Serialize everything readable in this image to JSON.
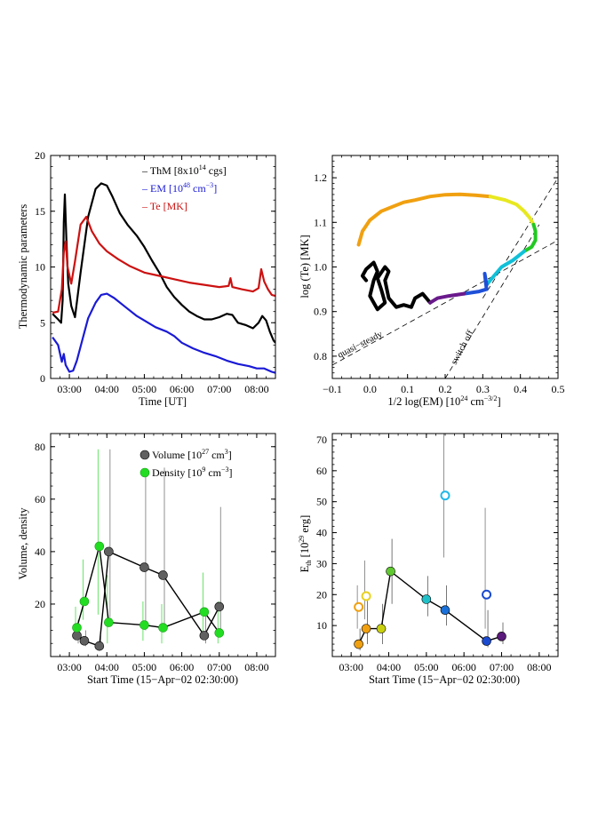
{
  "chart_data": [
    {
      "id": "thermo",
      "type": "line",
      "xlabel": "Time [UT]",
      "ylabel": "Thermodynamic parameters",
      "xlim": [
        2.5,
        8.5
      ],
      "ylim": [
        0,
        20
      ],
      "xticks": [
        3,
        4,
        5,
        6,
        7,
        8
      ],
      "xtick_labels": [
        "03:00",
        "04:00",
        "05:00",
        "06:00",
        "07:00",
        "08:00"
      ],
      "yticks": [
        0,
        5,
        10,
        15,
        20
      ],
      "legend": [
        "– ThM [8x10",
        "14",
        " cgs]",
        "– EM [10",
        "48",
        " cm",
        "−3",
        "]",
        "– Te [MK]"
      ],
      "legend_position": "top-right",
      "series": [
        {
          "name": "ThM",
          "color": "#000000",
          "x": [
            2.55,
            2.7,
            2.78,
            2.82,
            2.85,
            2.88,
            2.92,
            2.97,
            3.05,
            3.15,
            3.3,
            3.5,
            3.7,
            3.85,
            4.0,
            4.15,
            4.35,
            4.55,
            4.8,
            5.0,
            5.2,
            5.4,
            5.6,
            5.8,
            6.0,
            6.2,
            6.4,
            6.6,
            6.8,
            7.0,
            7.2,
            7.35,
            7.5,
            7.7,
            7.9,
            8.05,
            8.15,
            8.25,
            8.35,
            8.45,
            8.5
          ],
          "y": [
            5.8,
            5.3,
            5.0,
            7.0,
            14.0,
            16.5,
            12.5,
            8.5,
            6.5,
            5.5,
            9.5,
            14.5,
            17.0,
            17.5,
            17.3,
            16.3,
            14.8,
            13.8,
            12.8,
            11.8,
            10.6,
            9.5,
            8.2,
            7.3,
            6.6,
            6.0,
            5.6,
            5.3,
            5.3,
            5.5,
            5.8,
            5.7,
            5.0,
            4.8,
            4.5,
            5.0,
            5.6,
            5.2,
            4.2,
            3.4,
            3.2
          ]
        },
        {
          "name": "EM",
          "color": "#1a1ad6",
          "x": [
            2.55,
            2.7,
            2.8,
            2.85,
            2.9,
            3.0,
            3.1,
            3.2,
            3.35,
            3.5,
            3.7,
            3.85,
            4.0,
            4.2,
            4.5,
            4.8,
            5.0,
            5.3,
            5.6,
            5.8,
            6.0,
            6.3,
            6.6,
            6.9,
            7.2,
            7.5,
            7.8,
            8.0,
            8.2,
            8.4,
            8.5
          ],
          "y": [
            3.7,
            3.0,
            1.5,
            2.2,
            1.2,
            0.6,
            0.7,
            1.6,
            3.5,
            5.4,
            6.8,
            7.5,
            7.6,
            7.2,
            6.4,
            5.6,
            5.2,
            4.6,
            4.2,
            3.8,
            3.2,
            2.7,
            2.3,
            2.0,
            1.6,
            1.3,
            1.1,
            0.9,
            0.9,
            0.6,
            0.5
          ]
        },
        {
          "name": "Te",
          "color": "#cc1111",
          "x": [
            2.55,
            2.7,
            2.8,
            2.85,
            2.9,
            2.95,
            3.05,
            3.15,
            3.3,
            3.45,
            3.6,
            3.8,
            4.0,
            4.3,
            4.6,
            5.0,
            5.4,
            5.8,
            6.2,
            6.6,
            7.0,
            7.25,
            7.3,
            7.35,
            7.6,
            7.9,
            8.05,
            8.12,
            8.2,
            8.3,
            8.4,
            8.5
          ],
          "y": [
            5.9,
            6.0,
            8.0,
            11.3,
            12.3,
            10.0,
            8.5,
            10.5,
            13.8,
            14.5,
            13.2,
            12.1,
            11.4,
            10.7,
            10.1,
            9.5,
            9.2,
            8.9,
            8.6,
            8.4,
            8.2,
            8.3,
            9.0,
            8.2,
            8.0,
            7.8,
            8.1,
            9.8,
            8.7,
            8.0,
            7.5,
            7.4
          ]
        }
      ]
    },
    {
      "id": "phase",
      "type": "line",
      "xlabel": "1/2 log(EM) [10",
      "xlabel_sup": "24",
      "xlabel_mid": " cm",
      "xlabel_sup2": "−3/2",
      "xlabel_end": "]",
      "ylabel": "log (Te) [MK]",
      "xlim": [
        -0.1,
        0.5
      ],
      "ylim": [
        0.75,
        1.25
      ],
      "xticks": [
        -0.1,
        0.0,
        0.1,
        0.2,
        0.3,
        0.4,
        0.5
      ],
      "xtick_labels": [
        "−0.1",
        "0.0",
        "0.1",
        "0.2",
        "0.3",
        "0.4",
        "0.5"
      ],
      "yticks": [
        0.8,
        0.9,
        1.0,
        1.1,
        1.2
      ],
      "ytick_labels": [
        "0.8",
        "0.9",
        "1.0",
        "1.1",
        "1.2"
      ],
      "annotations": [
        "quasi−steady",
        "switch off"
      ],
      "reference_lines": [
        {
          "name": "quasi-steady",
          "x": [
            -0.1,
            0.5
          ],
          "y": [
            0.78,
            1.06
          ]
        },
        {
          "name": "upper-dashed",
          "x": [
            0.3,
            0.5
          ],
          "y": [
            0.93,
            1.2
          ]
        },
        {
          "name": "switch-off",
          "x": [
            0.2,
            0.45
          ],
          "y": [
            0.75,
            1.095
          ]
        }
      ],
      "series": [
        {
          "name": "trajectory-black",
          "color": "#000000",
          "x": [
            0.16,
            0.14,
            0.12,
            0.11,
            0.09,
            0.07,
            0.05,
            0.04,
            0.05,
            0.04,
            0.02,
            0.03,
            0.04,
            0.02,
            0.0,
            0.01,
            0.02,
            0.01,
            -0.01,
            -0.02,
            -0.01
          ],
          "y": [
            0.92,
            0.94,
            0.93,
            0.91,
            0.915,
            0.91,
            0.93,
            0.97,
            0.99,
            1.0,
            0.975,
            0.95,
            0.92,
            0.905,
            0.935,
            0.97,
            0.99,
            1.01,
            0.995,
            0.98,
            0.97
          ]
        },
        {
          "name": "trajectory-orange",
          "color": "#f0a010",
          "x": [
            -0.03,
            -0.02,
            0.0,
            0.03,
            0.06,
            0.09,
            0.12,
            0.16,
            0.2,
            0.24,
            0.28,
            0.32
          ],
          "y": [
            1.05,
            1.08,
            1.105,
            1.125,
            1.135,
            1.145,
            1.15,
            1.158,
            1.162,
            1.163,
            1.161,
            1.158
          ]
        },
        {
          "name": "trajectory-yellow",
          "color": "#e8e820",
          "x": [
            0.32,
            0.36,
            0.39,
            0.41,
            0.425,
            0.435
          ],
          "y": [
            1.158,
            1.15,
            1.14,
            1.125,
            1.11,
            1.095
          ]
        },
        {
          "name": "trajectory-green",
          "color": "#22c822",
          "x": [
            0.435,
            0.44,
            0.44,
            0.43,
            0.41
          ],
          "y": [
            1.095,
            1.08,
            1.06,
            1.045,
            1.035
          ]
        },
        {
          "name": "trajectory-cyan",
          "color": "#10c0d8",
          "x": [
            0.41,
            0.38,
            0.35,
            0.33,
            0.31
          ],
          "y": [
            1.035,
            1.015,
            1.0,
            0.98,
            0.96
          ]
        },
        {
          "name": "trajectory-blue",
          "color": "#1e50d8",
          "x": [
            0.31,
            0.305,
            0.31,
            0.29,
            0.25
          ],
          "y": [
            0.96,
            0.985,
            0.95,
            0.945,
            0.94
          ]
        },
        {
          "name": "trajectory-purple",
          "color": "#6a1a8c",
          "x": [
            0.25,
            0.21,
            0.18,
            0.16
          ],
          "y": [
            0.94,
            0.935,
            0.93,
            0.92
          ]
        }
      ]
    },
    {
      "id": "volume-density",
      "type": "scatter",
      "xlabel": "Start Time (15−Apr−02 02:30:00)",
      "ylabel": "Volume, density",
      "xlim": [
        2.5,
        8.5
      ],
      "ylim": [
        0,
        85
      ],
      "xticks": [
        3,
        4,
        5,
        6,
        7,
        8
      ],
      "xtick_labels": [
        "03:00",
        "04:00",
        "05:00",
        "06:00",
        "07:00",
        "08:00"
      ],
      "yticks": [
        20,
        40,
        60,
        80
      ],
      "legend": [
        "Volume [10",
        "27",
        " cm",
        "3",
        "]",
        "Density [10",
        "9",
        " cm",
        "−3",
        "]"
      ],
      "legend_position": "top-right",
      "series": [
        {
          "name": "Volume",
          "color": "#606060",
          "x": [
            3.2,
            3.4,
            3.8,
            4.05,
            5.0,
            5.5,
            6.6,
            7.0
          ],
          "y": [
            8,
            6,
            4,
            40,
            34,
            31,
            8,
            19
          ],
          "err_low": [
            5,
            4,
            3,
            15,
            10,
            10,
            5,
            8
          ],
          "err_high": [
            14,
            10,
            8,
            79,
            69,
            72,
            16,
            57
          ]
        },
        {
          "name": "Density",
          "color": "#22dd22",
          "x": [
            3.2,
            3.4,
            3.8,
            4.05,
            5.0,
            5.5,
            6.6,
            7.0
          ],
          "y": [
            11,
            21,
            42,
            13,
            12,
            11,
            17,
            9
          ],
          "err_low": [
            8,
            14,
            16,
            5,
            6,
            5,
            9,
            5
          ],
          "err_high": [
            19,
            37,
            79,
            31,
            21,
            20,
            32,
            21
          ]
        }
      ]
    },
    {
      "id": "thermal-energy",
      "type": "scatter",
      "xlabel": "Start Time (15−Apr−02 02:30:00)",
      "ylabel": "E",
      "ylabel_sub": "th",
      "ylabel_mid": " [10",
      "ylabel_sup": "29",
      "ylabel_end": " erg]",
      "xlim": [
        2.5,
        8.5
      ],
      "ylim": [
        0,
        72
      ],
      "xticks": [
        3,
        4,
        5,
        6,
        7,
        8
      ],
      "xtick_labels": [
        "03:00",
        "04:00",
        "05:00",
        "06:00",
        "07:00",
        "08:00"
      ],
      "yticks": [
        10,
        20,
        30,
        40,
        50,
        60,
        70
      ],
      "series": [
        {
          "name": "filled",
          "x": [
            3.2,
            3.4,
            3.8,
            4.05,
            5.0,
            5.5,
            6.6,
            7.0
          ],
          "y": [
            4,
            9,
            9,
            27.5,
            18.5,
            15,
            5,
            6.5
          ],
          "colors": [
            "#f0a010",
            "#f0a010",
            "#c8d010",
            "#60c830",
            "#20c0c8",
            "#1a70d8",
            "#1a4ad0",
            "#5a1a7c"
          ],
          "err_low": [
            2,
            4,
            4,
            17,
            13,
            10,
            3,
            4
          ],
          "err_high": [
            9,
            18,
            17,
            38,
            26,
            23,
            15,
            11
          ]
        },
        {
          "name": "open",
          "x": [
            3.2,
            3.4,
            5.5,
            6.6
          ],
          "y": [
            16,
            19.5,
            52,
            20
          ],
          "colors": [
            "#f0a010",
            "#e8d020",
            "#20b8e8",
            "#1a4ad0"
          ],
          "err_low": [
            9,
            12,
            32,
            9
          ],
          "err_high": [
            23,
            31,
            72,
            48
          ]
        }
      ]
    }
  ]
}
